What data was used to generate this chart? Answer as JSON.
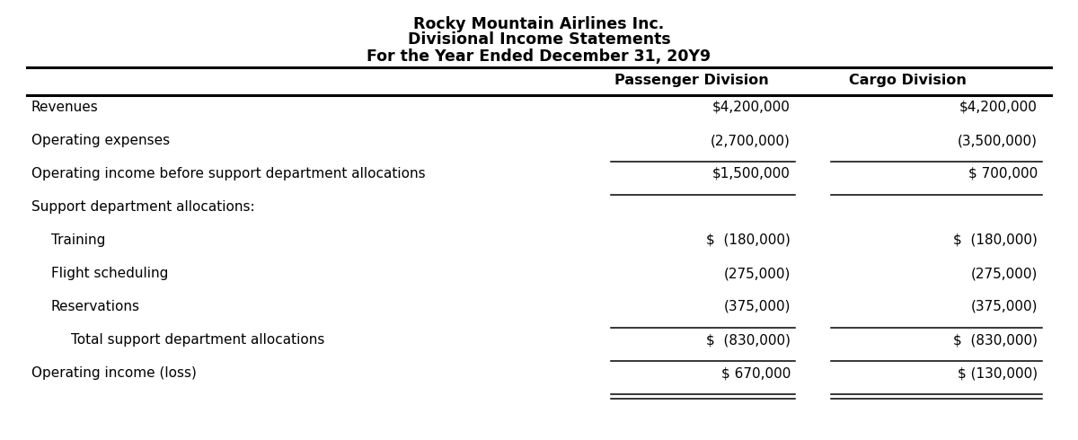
{
  "title_lines": [
    "Rocky Mountain Airlines Inc.",
    "Divisional Income Statements",
    "For the Year Ended December 31, 20Y9"
  ],
  "rows": [
    {
      "label": "Revenues",
      "passenger": "$4,200,000",
      "cargo": "$4,200,000",
      "indent": 0,
      "underline_below_passenger": false,
      "underline_below_cargo": false,
      "double_underline_passenger": false,
      "double_underline_cargo": false
    },
    {
      "label": "Operating expenses",
      "passenger": "(2,700,000)",
      "cargo": "(3,500,000)",
      "indent": 0,
      "underline_below_passenger": true,
      "underline_below_cargo": true,
      "double_underline_passenger": false,
      "double_underline_cargo": false
    },
    {
      "label": "Operating income before support department allocations",
      "passenger": "$1,500,000",
      "cargo": "$ 700,000",
      "indent": 0,
      "underline_below_passenger": true,
      "underline_below_cargo": true,
      "double_underline_passenger": false,
      "double_underline_cargo": false
    },
    {
      "label": "Support department allocations:",
      "passenger": "",
      "cargo": "",
      "indent": 0,
      "underline_below_passenger": false,
      "underline_below_cargo": false,
      "double_underline_passenger": false,
      "double_underline_cargo": false
    },
    {
      "label": "Training",
      "passenger": "$  (180,000)",
      "cargo": "$  (180,000)",
      "indent": 1,
      "underline_below_passenger": false,
      "underline_below_cargo": false,
      "double_underline_passenger": false,
      "double_underline_cargo": false
    },
    {
      "label": "Flight scheduling",
      "passenger": "(275,000)",
      "cargo": "(275,000)",
      "indent": 1,
      "underline_below_passenger": false,
      "underline_below_cargo": false,
      "double_underline_passenger": false,
      "double_underline_cargo": false
    },
    {
      "label": "Reservations",
      "passenger": "(375,000)",
      "cargo": "(375,000)",
      "indent": 1,
      "underline_below_passenger": true,
      "underline_below_cargo": true,
      "double_underline_passenger": false,
      "double_underline_cargo": false
    },
    {
      "label": "Total support department allocations",
      "passenger": "$  (830,000)",
      "cargo": "$  (830,000)",
      "indent": 2,
      "underline_below_passenger": true,
      "underline_below_cargo": true,
      "double_underline_passenger": false,
      "double_underline_cargo": false
    },
    {
      "label": "Operating income (loss)",
      "passenger": "$ 670,000",
      "cargo": "$ (130,000)",
      "indent": 0,
      "underline_below_passenger": false,
      "underline_below_cargo": false,
      "double_underline_passenger": true,
      "double_underline_cargo": true
    }
  ],
  "bg_color": "#ffffff",
  "text_color": "#000000",
  "font_size": 11.0,
  "header_font_size": 11.5,
  "title_font_size": 12.5,
  "col1_header": "Passenger Division",
  "col2_header": "Cargo Division"
}
